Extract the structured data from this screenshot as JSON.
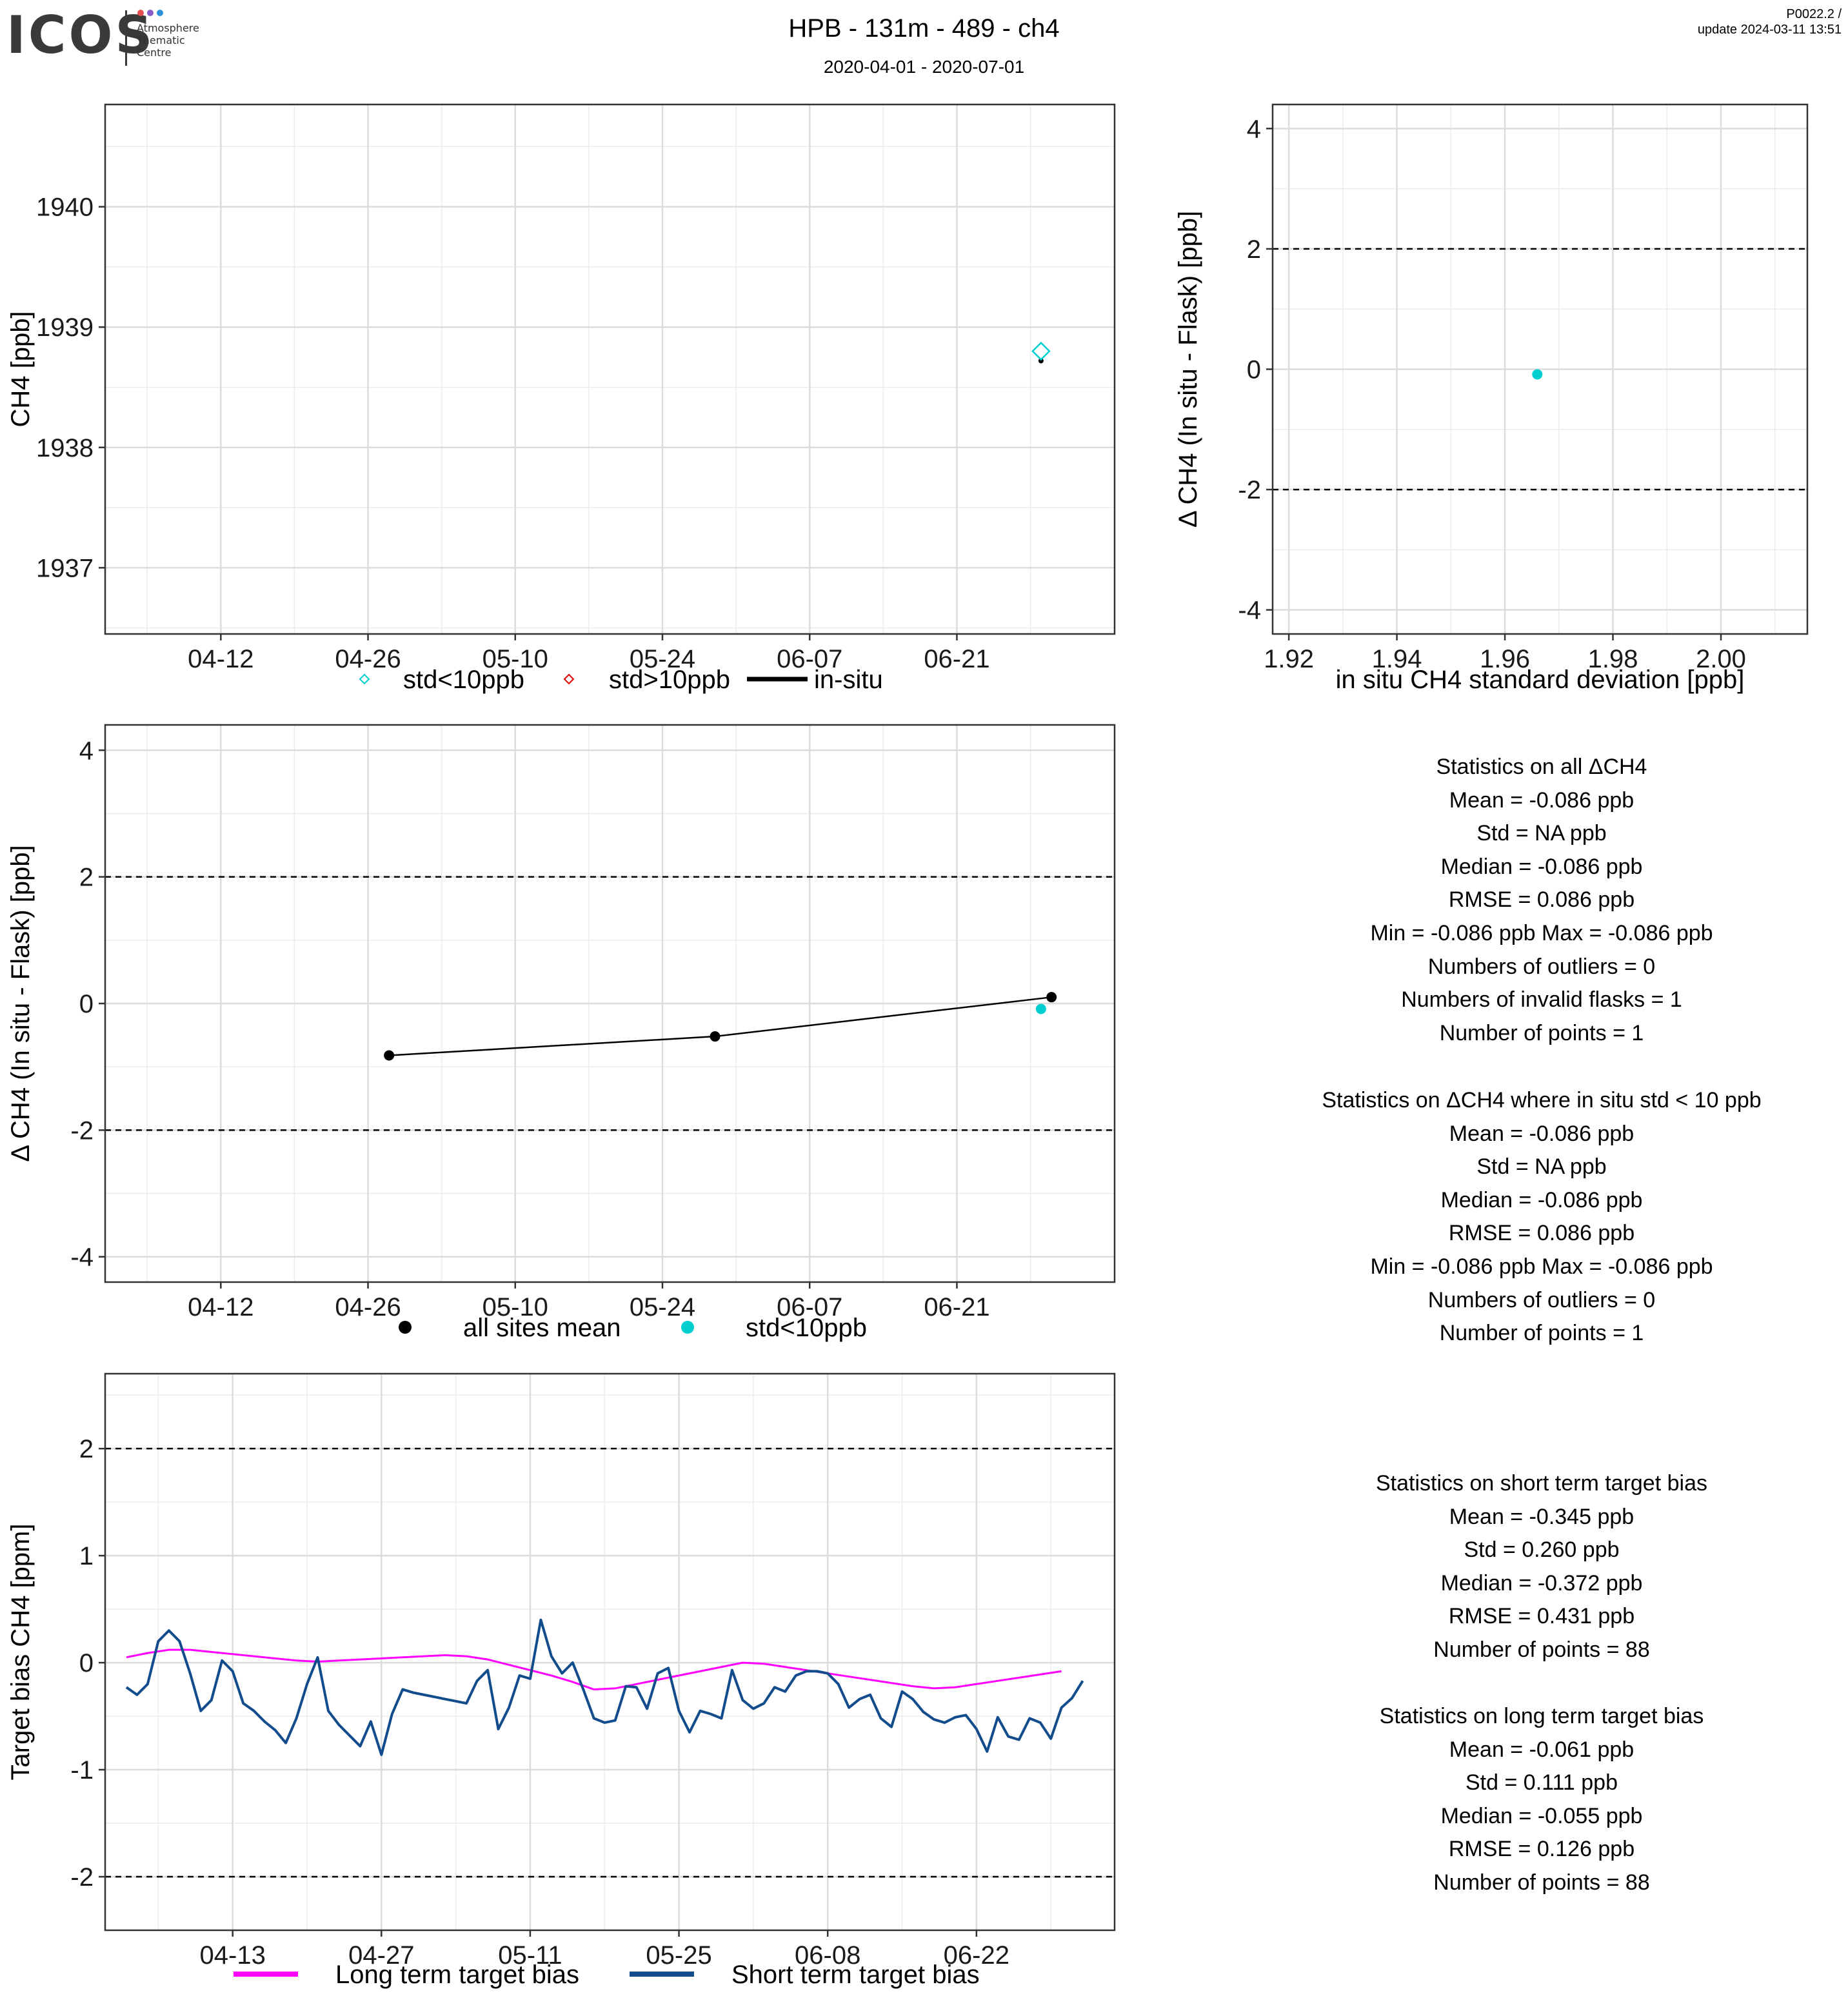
{
  "header": {
    "logo_text": "ICOS",
    "logo_sub": [
      "Atmosphere",
      "Thematic",
      "Centre"
    ],
    "title": "HPB - 131m - 489 - ch4",
    "subtitle": "2020-04-01 - 2020-07-01",
    "version": "P0022.2 /",
    "update": "update  2024-03-11 13:51"
  },
  "colors": {
    "std_lt_10": "#00CED1",
    "std_gt_10": "#e00000",
    "insitu": "#000000",
    "long_term": "#FF00FF",
    "short_term": "#124C8C",
    "logo_dots": [
      "#e8514f",
      "#8a5ac8",
      "#2f8fd6"
    ]
  },
  "chart_data": [
    {
      "id": "ch4_timeseries",
      "type": "scatter",
      "title": "",
      "xlabel": "",
      "ylabel": "CH4 [ppb]",
      "xlim": [
        "2020-04-01",
        "2020-07-06"
      ],
      "ylim": [
        1936.45,
        1940.85
      ],
      "xticks": [
        {
          "date": "2020-04-12",
          "label": "04-12"
        },
        {
          "date": "2020-04-26",
          "label": "04-26"
        },
        {
          "date": "2020-05-10",
          "label": "05-10"
        },
        {
          "date": "2020-05-24",
          "label": "05-24"
        },
        {
          "date": "2020-06-07",
          "label": "06-07"
        },
        {
          "date": "2020-06-21",
          "label": "06-21"
        }
      ],
      "yticks": [
        1937,
        1938,
        1939,
        1940
      ],
      "series": [
        {
          "name": "std<10ppb",
          "marker": "diamond",
          "points": [
            {
              "x": "2020-06-29",
              "y": 1938.8
            }
          ]
        },
        {
          "name": "std>10ppb",
          "marker": "diamond",
          "points": []
        },
        {
          "name": "in-situ",
          "marker": "point",
          "points": [
            {
              "x": "2020-06-29",
              "y": 1938.72
            }
          ]
        }
      ],
      "legend": [
        "std<10ppb",
        "std>10ppb",
        "in-situ"
      ],
      "legend_position": "bottom",
      "grid": true
    },
    {
      "id": "delta_vs_std",
      "type": "scatter",
      "title": "",
      "xlabel": "in situ CH4 standard deviation [ppb]",
      "ylabel": "Δ CH4 (In situ - Flask) [ppb]",
      "xlim": [
        1.917,
        2.016
      ],
      "ylim": [
        -4.4,
        4.4
      ],
      "xticks": [
        1.92,
        1.94,
        1.96,
        1.98,
        2.0
      ],
      "xtick_labels": [
        "1.92",
        "1.94",
        "1.96",
        "1.98",
        "2.00"
      ],
      "yticks": [
        -4,
        -2,
        0,
        2,
        4
      ],
      "hlines": [
        -2,
        2
      ],
      "series": [
        {
          "name": "std<10ppb",
          "points": [
            {
              "x": 1.966,
              "y": -0.086
            }
          ]
        }
      ],
      "grid": true
    },
    {
      "id": "delta_timeseries",
      "type": "scatter",
      "title": "",
      "xlabel": "",
      "ylabel": "Δ CH4 (In situ - Flask) [ppb]",
      "xlim": [
        "2020-04-01",
        "2020-07-06"
      ],
      "ylim": [
        -4.4,
        4.4
      ],
      "xticks": [
        {
          "date": "2020-04-12",
          "label": "04-12"
        },
        {
          "date": "2020-04-26",
          "label": "04-26"
        },
        {
          "date": "2020-05-10",
          "label": "05-10"
        },
        {
          "date": "2020-05-24",
          "label": "05-24"
        },
        {
          "date": "2020-06-07",
          "label": "06-07"
        },
        {
          "date": "2020-06-21",
          "label": "06-21"
        }
      ],
      "yticks": [
        -4,
        -2,
        0,
        2,
        4
      ],
      "hlines": [
        -2,
        2
      ],
      "series": [
        {
          "name": "all sites mean",
          "line": true,
          "points": [
            {
              "x": "2020-04-28",
              "y": -0.82
            },
            {
              "x": "2020-05-29",
              "y": -0.52
            },
            {
              "x": "2020-06-30",
              "y": 0.1
            }
          ]
        },
        {
          "name": "std<10ppb",
          "line": false,
          "points": [
            {
              "x": "2020-06-29",
              "y": -0.086
            }
          ]
        }
      ],
      "legend": [
        "all sites mean",
        "std<10ppb"
      ],
      "legend_position": "bottom",
      "grid": true
    },
    {
      "id": "target_bias",
      "type": "line",
      "title": "",
      "xlabel": "",
      "ylabel": "Target bias CH4 [ppm]",
      "xlim": [
        "2020-04-01",
        "2020-07-05"
      ],
      "ylim": [
        -2.5,
        2.7
      ],
      "xticks": [
        {
          "date": "2020-04-13",
          "label": "04-13"
        },
        {
          "date": "2020-04-27",
          "label": "04-27"
        },
        {
          "date": "2020-05-11",
          "label": "05-11"
        },
        {
          "date": "2020-05-25",
          "label": "05-25"
        },
        {
          "date": "2020-06-08",
          "label": "06-08"
        },
        {
          "date": "2020-06-22",
          "label": "06-22"
        }
      ],
      "yticks": [
        -2,
        -1,
        0,
        1,
        2
      ],
      "hlines": [
        -2,
        2
      ],
      "x_start": "2020-04-03",
      "series": [
        {
          "name": "Long term target bias",
          "x_step_days": 2,
          "values": [
            0.05,
            0.09,
            0.12,
            0.12,
            0.1,
            0.08,
            0.06,
            0.04,
            0.02,
            0.01,
            0.02,
            0.03,
            0.04,
            0.05,
            0.06,
            0.07,
            0.06,
            0.03,
            -0.02,
            -0.07,
            -0.12,
            -0.18,
            -0.25,
            -0.24,
            -0.2,
            -0.16,
            -0.12,
            -0.08,
            -0.04,
            0.0,
            -0.01,
            -0.04,
            -0.07,
            -0.1,
            -0.13,
            -0.16,
            -0.19,
            -0.22,
            -0.24,
            -0.23,
            -0.2,
            -0.17,
            -0.14,
            -0.11,
            -0.08
          ]
        },
        {
          "name": "Short term target bias",
          "x_step_days": 1,
          "values": [
            -0.23,
            -0.3,
            -0.2,
            0.2,
            0.3,
            0.2,
            -0.1,
            -0.45,
            -0.35,
            0.02,
            -0.08,
            -0.38,
            -0.45,
            -0.55,
            -0.63,
            -0.75,
            -0.52,
            -0.2,
            0.05,
            -0.45,
            -0.58,
            -0.68,
            -0.78,
            -0.55,
            -0.86,
            -0.48,
            -0.25,
            -0.28,
            -0.3,
            -0.32,
            -0.34,
            -0.36,
            -0.38,
            -0.17,
            -0.07,
            -0.62,
            -0.42,
            -0.12,
            -0.15,
            0.4,
            0.06,
            -0.1,
            0.0,
            -0.25,
            -0.52,
            -0.56,
            -0.54,
            -0.22,
            -0.23,
            -0.43,
            -0.1,
            -0.05,
            -0.45,
            -0.65,
            -0.45,
            -0.48,
            -0.52,
            -0.07,
            -0.35,
            -0.43,
            -0.38,
            -0.23,
            -0.27,
            -0.12,
            -0.08,
            -0.08,
            -0.1,
            -0.2,
            -0.42,
            -0.34,
            -0.3,
            -0.52,
            -0.6,
            -0.27,
            -0.34,
            -0.46,
            -0.53,
            -0.56,
            -0.51,
            -0.49,
            -0.62,
            -0.83,
            -0.51,
            -0.69,
            -0.72,
            -0.52,
            -0.56,
            -0.71,
            -0.42,
            -0.33,
            -0.17
          ]
        }
      ],
      "legend": [
        "Long term target bias",
        "Short term target bias"
      ],
      "legend_position": "bottom",
      "grid": true
    }
  ],
  "stats": {
    "block1": [
      "Statistics on all ΔCH4",
      "Mean =  -0.086 ppb",
      "Std =  NA ppb",
      "Median =  -0.086 ppb",
      "RMSE =  0.086 ppb",
      "Min =  -0.086 ppb Max =  -0.086 ppb",
      "Numbers of outliers =  0",
      "Numbers of invalid flasks =  1",
      "Number of points =  1"
    ],
    "block2": [
      "Statistics on ΔCH4 where in situ std < 10 ppb",
      "Mean =  -0.086 ppb",
      "Std =  NA ppb",
      "Median =  -0.086 ppb",
      "RMSE =  0.086 ppb",
      "Min =  -0.086 ppb Max =  -0.086 ppb",
      "Numbers of outliers =  0",
      "Number of points =  1"
    ],
    "block3": [
      "Statistics on short term target bias",
      "Mean =  -0.345 ppb",
      "Std =  0.260 ppb",
      "Median =  -0.372 ppb",
      "RMSE =  0.431 ppb",
      "Number of points =  88"
    ],
    "block4": [
      "Statistics on long term target bias",
      "Mean =  -0.061 ppb",
      "Std =  0.111 ppb",
      "Median =  -0.055 ppb",
      "RMSE =  0.126 ppb",
      "Number of points =  88"
    ]
  }
}
